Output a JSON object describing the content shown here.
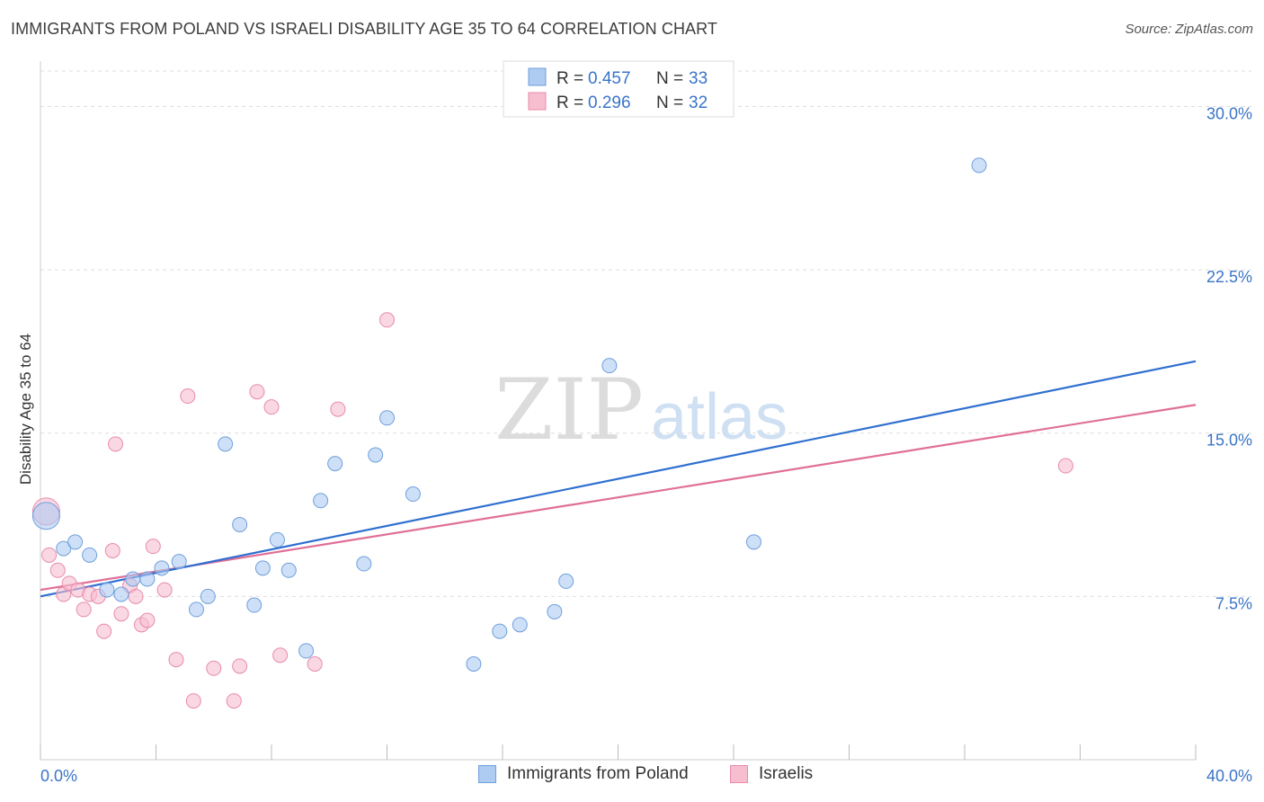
{
  "header": {
    "title": "IMMIGRANTS FROM POLAND VS ISRAELI DISABILITY AGE 35 TO 64 CORRELATION CHART",
    "source": "Source: ZipAtlas.com"
  },
  "watermark": {
    "zip": "ZIP",
    "atlas": "atlas"
  },
  "colors": {
    "poland_fill": "#aecbf2",
    "poland_stroke": "#6f9fdc",
    "poland_line": "#2f6fd0",
    "israeli_fill": "#f7bed0",
    "israeli_stroke": "#e88aaa",
    "israeli_line": "#e06f98",
    "axis_tick_text": "#3a74c8",
    "grid": "#dddddd"
  },
  "legend": {
    "rows": [
      {
        "r_label": "R =",
        "r_value": "0.457",
        "n_label": "N =",
        "n_value": "33"
      },
      {
        "r_label": "R =",
        "r_value": "0.296",
        "n_label": "N =",
        "n_value": "32"
      }
    ]
  },
  "chart_data": {
    "type": "scatter",
    "title": "IMMIGRANTS FROM POLAND VS ISRAELI DISABILITY AGE 35 TO 64 CORRELATION CHART",
    "xlabel": "",
    "ylabel": "Disability Age 35 to 64",
    "xlim": [
      0,
      40
    ],
    "ylim": [
      0,
      32
    ],
    "x_tick_labels": [
      "0.0%",
      "40.0%"
    ],
    "y_ticks": [
      7.5,
      15.0,
      22.5,
      30.0
    ],
    "y_tick_labels": [
      "7.5%",
      "15.0%",
      "22.5%",
      "30.0%"
    ],
    "x_minor_ticks": [
      0,
      4,
      8,
      12,
      16,
      20,
      24,
      28,
      32,
      36,
      40
    ],
    "grid": true,
    "legend_position": "top-center",
    "series": [
      {
        "name": "Immigrants from Poland",
        "r": 0.457,
        "n": 33,
        "trend": {
          "x": [
            0,
            40
          ],
          "y": [
            7.5,
            18.3
          ]
        },
        "points": [
          [
            0.2,
            11.2
          ],
          [
            0.8,
            9.7
          ],
          [
            1.2,
            10.0
          ],
          [
            1.7,
            9.4
          ],
          [
            2.3,
            7.8
          ],
          [
            2.8,
            7.6
          ],
          [
            3.2,
            8.3
          ],
          [
            3.7,
            8.3
          ],
          [
            4.2,
            8.8
          ],
          [
            4.8,
            9.1
          ],
          [
            5.4,
            6.9
          ],
          [
            5.8,
            7.5
          ],
          [
            6.4,
            14.5
          ],
          [
            6.9,
            10.8
          ],
          [
            7.4,
            7.1
          ],
          [
            7.7,
            8.8
          ],
          [
            8.2,
            10.1
          ],
          [
            8.6,
            8.7
          ],
          [
            9.2,
            5.0
          ],
          [
            9.7,
            11.9
          ],
          [
            10.2,
            13.6
          ],
          [
            11.2,
            9.0
          ],
          [
            11.6,
            14.0
          ],
          [
            12.0,
            15.7
          ],
          [
            12.9,
            12.2
          ],
          [
            15.0,
            4.4
          ],
          [
            15.9,
            5.9
          ],
          [
            16.6,
            6.2
          ],
          [
            17.8,
            6.8
          ],
          [
            18.2,
            8.2
          ],
          [
            19.7,
            18.1
          ],
          [
            24.7,
            10.0
          ],
          [
            32.5,
            27.3
          ]
        ]
      },
      {
        "name": "Israelis",
        "r": 0.296,
        "n": 32,
        "trend": {
          "x": [
            0,
            40
          ],
          "y": [
            7.8,
            16.3
          ]
        },
        "points": [
          [
            0.2,
            11.4
          ],
          [
            0.3,
            9.4
          ],
          [
            0.6,
            8.7
          ],
          [
            0.8,
            7.6
          ],
          [
            1.0,
            8.1
          ],
          [
            1.3,
            7.8
          ],
          [
            1.5,
            6.9
          ],
          [
            1.7,
            7.6
          ],
          [
            2.0,
            7.5
          ],
          [
            2.2,
            5.9
          ],
          [
            2.5,
            9.6
          ],
          [
            2.6,
            14.5
          ],
          [
            2.8,
            6.7
          ],
          [
            3.1,
            8.0
          ],
          [
            3.3,
            7.5
          ],
          [
            3.5,
            6.2
          ],
          [
            3.7,
            6.4
          ],
          [
            3.9,
            9.8
          ],
          [
            4.3,
            7.8
          ],
          [
            4.7,
            4.6
          ],
          [
            5.1,
            16.7
          ],
          [
            5.3,
            2.7
          ],
          [
            6.0,
            4.2
          ],
          [
            6.7,
            2.7
          ],
          [
            6.9,
            4.3
          ],
          [
            7.5,
            16.9
          ],
          [
            8.0,
            16.2
          ],
          [
            8.3,
            4.8
          ],
          [
            9.5,
            4.4
          ],
          [
            10.3,
            16.1
          ],
          [
            12.0,
            20.2
          ],
          [
            35.5,
            13.5
          ]
        ]
      }
    ]
  }
}
